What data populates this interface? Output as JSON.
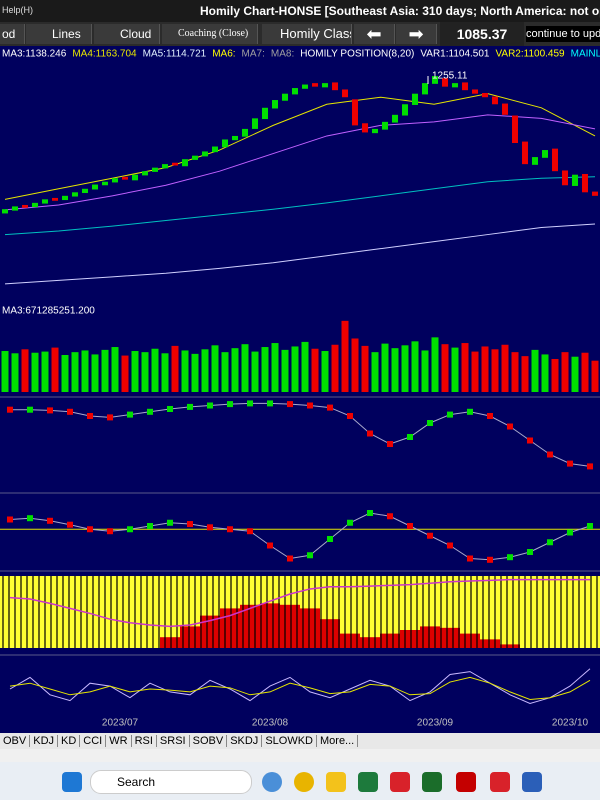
{
  "toolbar": {
    "help": "Help(H)",
    "title": "Homily Chart-HONSE  [Southeast Asia: 310 days; North America: not op"
  },
  "buttons": [
    "od",
    "Lines",
    "Cloud",
    "Coaching (Close)",
    "Homily Class"
  ],
  "price": 1085.37,
  "notice": "continue to upd",
  "indicators": [
    {
      "text": "MA3:1138.246",
      "color": "#ffffff"
    },
    {
      "text": "MA4:1163.704",
      "color": "#e6e600"
    },
    {
      "text": "MA5:1114.721",
      "color": "#e0f0ff"
    },
    {
      "text": "MA6:",
      "color": "#ffff00"
    },
    {
      "text": "MA7:",
      "color": "#a0a0a0"
    },
    {
      "text": "MA8:",
      "color": "#a0a0a0"
    },
    {
      "text": "HOMILY POSITION(8,20)",
      "color": "#ffffff"
    },
    {
      "text": "VAR1:1104.501",
      "color": "#ffffff"
    },
    {
      "text": "VAR2:1100.459",
      "color": "#ffff00"
    },
    {
      "text": "MAINLINE:",
      "color": "#00ffff"
    }
  ],
  "chart_data": [
    {
      "type": "candlestick",
      "ylim": [
        930,
        1275
      ],
      "up_color": "#00e000",
      "down_color": "#ee0000",
      "peak": 1255.11,
      "open": [
        1060,
        1064,
        1072,
        1069,
        1074,
        1082,
        1079,
        1084,
        1089,
        1094,
        1100,
        1104,
        1112,
        1107,
        1114,
        1119,
        1124,
        1132,
        1127,
        1136,
        1141,
        1147,
        1154,
        1164,
        1169,
        1180,
        1194,
        1209,
        1220,
        1229,
        1237,
        1245,
        1239,
        1246,
        1236,
        1222,
        1188,
        1174,
        1179,
        1189,
        1199,
        1214,
        1229,
        1244,
        1252,
        1239,
        1246,
        1236,
        1231,
        1226,
        1216,
        1199,
        1162,
        1129,
        1139,
        1152,
        1121,
        1099,
        1116,
        1091
      ],
      "close": [
        1066,
        1070,
        1068,
        1075,
        1080,
        1078,
        1085,
        1090,
        1095,
        1101,
        1105,
        1110,
        1108,
        1115,
        1120,
        1125,
        1130,
        1128,
        1137,
        1142,
        1148,
        1155,
        1165,
        1170,
        1180,
        1195,
        1210,
        1221,
        1230,
        1238,
        1243,
        1240,
        1245,
        1235,
        1225,
        1185,
        1175,
        1180,
        1190,
        1200,
        1215,
        1230,
        1245,
        1255,
        1240,
        1245,
        1235,
        1230,
        1225,
        1215,
        1200,
        1160,
        1130,
        1140,
        1150,
        1120,
        1100,
        1115,
        1090,
        1085
      ],
      "lines": [
        {
          "color": "#e6e600",
          "values": [
            1080,
            1095,
            1110,
            1125,
            1150,
            1185,
            1215,
            1225,
            1215,
            1230,
            1210,
            1170
          ]
        },
        {
          "color": "#c060ff",
          "values": [
            1065,
            1072,
            1085,
            1100,
            1120,
            1145,
            1170,
            1185,
            1190,
            1200,
            1195,
            1180
          ]
        },
        {
          "color": "#00c0c0",
          "values": [
            1030,
            1035,
            1042,
            1050,
            1058,
            1066,
            1075,
            1085,
            1095,
            1105,
            1110,
            1112
          ]
        },
        {
          "color": "#d0d0ff",
          "values": [
            960,
            965,
            970,
            975,
            982,
            990,
            1000,
            1010,
            1020,
            1030,
            1040,
            1045
          ]
        }
      ]
    },
    {
      "type": "volume",
      "title": "MA3:671285251.200",
      "ylim": [
        0,
        1300000000
      ],
      "values": [
        720000000.0,
        680000000.0,
        750000000.0,
        690000000.0,
        710000000.0,
        780000000.0,
        650000000.0,
        700000000.0,
        730000000.0,
        660000000.0,
        740000000.0,
        790000000.0,
        640000000.0,
        720000000.0,
        700000000.0,
        760000000.0,
        680000000.0,
        810000000.0,
        730000000.0,
        670000000.0,
        750000000.0,
        820000000.0,
        700000000.0,
        770000000.0,
        840000000.0,
        710000000.0,
        790000000.0,
        860000000.0,
        740000000.0,
        800000000.0,
        880000000.0,
        760000000.0,
        720000000.0,
        830000000.0,
        1250000000.0,
        940000000.0,
        810000000.0,
        700000000.0,
        850000000.0,
        770000000.0,
        820000000.0,
        890000000.0,
        730000000.0,
        960000000.0,
        840000000.0,
        780000000.0,
        860000000.0,
        710000000.0,
        800000000.0,
        750000000.0,
        830000000.0,
        700000000.0,
        630000000.0,
        740000000.0,
        660000000.0,
        580000000.0,
        700000000.0,
        620000000.0,
        690000000.0,
        550000000.0
      ]
    },
    {
      "type": "dots",
      "ylim": [
        0,
        100
      ],
      "values": [
        89,
        89,
        88,
        86,
        80,
        78,
        82,
        86,
        90,
        93,
        95,
        97,
        98,
        98,
        97,
        95,
        92,
        80,
        55,
        40,
        50,
        70,
        82,
        86,
        80,
        65,
        45,
        25,
        12,
        8
      ]
    },
    {
      "type": "dots",
      "ylim": [
        0,
        100
      ],
      "level": 55,
      "level_color": "#e6e600",
      "values": [
        70,
        72,
        68,
        62,
        55,
        52,
        55,
        60,
        65,
        63,
        58,
        55,
        52,
        30,
        10,
        15,
        40,
        65,
        80,
        75,
        60,
        45,
        30,
        10,
        8,
        12,
        20,
        35,
        50,
        60
      ]
    },
    {
      "type": "area",
      "ylim": [
        0,
        100
      ],
      "background": "#ffff33",
      "color": "#dd0000",
      "line_color": "#cc33cc",
      "values": [
        0,
        0,
        0,
        0,
        0,
        0,
        0,
        0,
        15,
        30,
        45,
        55,
        60,
        62,
        60,
        55,
        40,
        20,
        15,
        20,
        25,
        30,
        28,
        20,
        12,
        5,
        0,
        0,
        0,
        0
      ],
      "line": [
        70,
        68,
        62,
        55,
        48,
        40,
        35,
        32,
        30,
        32,
        38,
        45,
        55,
        65,
        75,
        82,
        85,
        85,
        86,
        87,
        88,
        90,
        92,
        93,
        94,
        95,
        95,
        95,
        95,
        95
      ]
    },
    {
      "type": "lines",
      "ylim": [
        0,
        100
      ],
      "series": [
        {
          "color": "#c8b8ff",
          "values": [
            50,
            70,
            40,
            30,
            60,
            55,
            35,
            60,
            45,
            40,
            65,
            50,
            30,
            55,
            70,
            45,
            35,
            50,
            65,
            55,
            30,
            45,
            75,
            80,
            60,
            40,
            25,
            35,
            55,
            85
          ]
        },
        {
          "color": "#e6e600",
          "values": [
            55,
            60,
            50,
            40,
            45,
            55,
            45,
            50,
            48,
            45,
            55,
            52,
            40,
            45,
            60,
            52,
            42,
            45,
            58,
            55,
            40,
            42,
            62,
            70,
            60,
            45,
            32,
            35,
            45,
            65
          ]
        }
      ]
    }
  ],
  "timeline": [
    "2023/07",
    "2023/08",
    "2023/09",
    "2023/10"
  ],
  "tabs": [
    "OBV",
    "KDJ",
    "KD",
    "CCI",
    "WR",
    "RSI",
    "SRSI",
    "SOBV",
    "SKDJ",
    "SLOWKD",
    "More..."
  ],
  "taskbar": {
    "search": "Search"
  }
}
